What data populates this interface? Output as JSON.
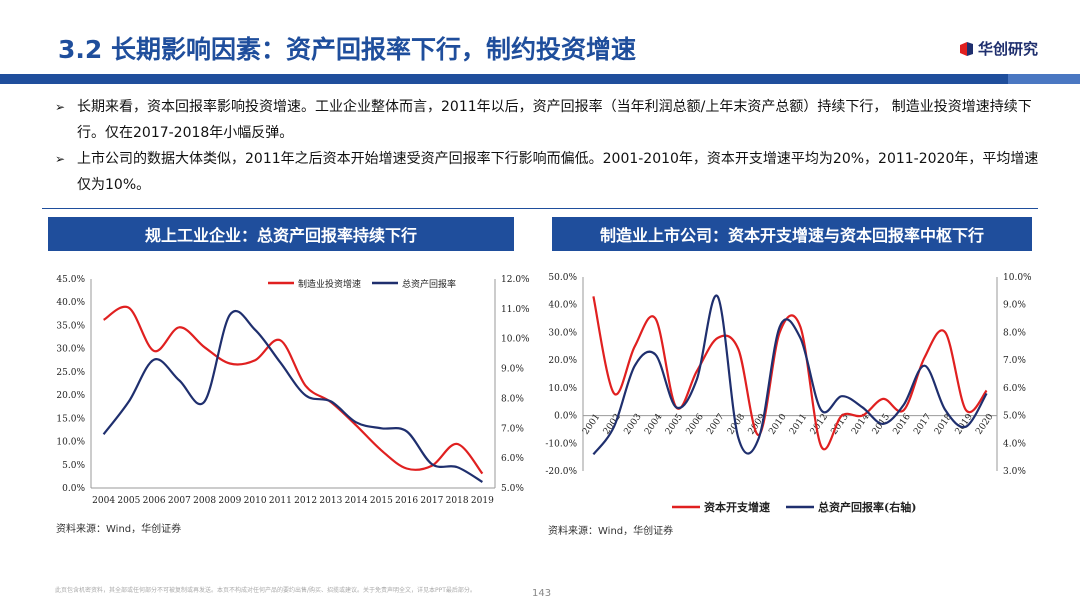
{
  "header": {
    "title": "3.2 长期影响因素：资产回报率下行，制约投资增速",
    "logo_text": "华创研究",
    "logo_colors": [
      "#e02020",
      "#1f2f6e"
    ]
  },
  "bullets": [
    "长期来看，资本回报率影响投资增速。工业企业整体而言，2011年以后，资产回报率（当年利润总额/上年末资产总额）持续下行， 制造业投资增速持续下行。仅在2017-2018年小幅反弹。",
    "上市公司的数据大体类似，2011年之后资本开始增速受资产回报率下行影响而偏低。2001-2010年，资本开支增速平均为20%，2011-2020年，平均增速仅为10%。"
  ],
  "bullet_marker": "➢",
  "panels": {
    "left_title": "规上工业企业：总资产回报率持续下行",
    "right_title": "制造业上市公司：资本开支增速与资本回报率中枢下行",
    "left_source": "资料来源：Wind，华创证券",
    "right_source": "资料来源：Wind，华创证券"
  },
  "footer": {
    "disclaimer": "此页包含机密资料，其全部或任何部分不可被复制或再发送。本页不构成对任何产品的要约出售/购买、招揽或建议。关于免责声明全文，详见本PPT最后部分。",
    "page_number": "143"
  },
  "chart_data": [
    {
      "type": "line",
      "x": [
        "2004",
        "2005",
        "2006",
        "2007",
        "2008",
        "2009",
        "2010",
        "2011",
        "2012",
        "2013",
        "2014",
        "2015",
        "2016",
        "2017",
        "2018",
        "2019"
      ],
      "series": [
        {
          "name": "制造业投资增速",
          "axis": "left",
          "color": "#e02020",
          "values": [
            36.2,
            38.8,
            29.5,
            34.6,
            30.3,
            26.8,
            27.5,
            31.8,
            22.0,
            18.5,
            13.5,
            8.1,
            4.2,
            4.8,
            9.5,
            3.1
          ]
        },
        {
          "name": "总资产回报率",
          "axis": "right",
          "color": "#1f2f6e",
          "values": [
            6.8,
            7.9,
            9.3,
            8.6,
            7.9,
            10.8,
            10.3,
            9.2,
            8.1,
            7.9,
            7.2,
            7.0,
            6.9,
            5.8,
            5.7,
            5.2
          ]
        }
      ],
      "y_left": {
        "min": 0,
        "max": 45,
        "step": 5,
        "format": "percent1"
      },
      "y_right": {
        "min": 5,
        "max": 12,
        "step": 1,
        "format": "percent1"
      },
      "legend_position": "top-right",
      "title": "",
      "xlabel": "",
      "ylabel": ""
    },
    {
      "type": "line",
      "x": [
        "2001",
        "2002",
        "2003",
        "2004",
        "2005",
        "2006",
        "2007",
        "2008",
        "2009",
        "2010",
        "2011",
        "2012",
        "2013",
        "2014",
        "2015",
        "2016",
        "2017",
        "2018",
        "2019",
        "2020"
      ],
      "series": [
        {
          "name": "资本开支增速",
          "axis": "left",
          "color": "#e02020",
          "values": [
            43,
            8,
            25,
            35,
            3,
            16,
            28,
            24,
            -7,
            30,
            32,
            -11,
            0,
            0,
            6,
            2,
            21,
            30,
            2,
            9
          ]
        },
        {
          "name": "总资产回报率(右轴)",
          "axis": "right",
          "color": "#1f2f6e",
          "values": [
            3.6,
            4.6,
            6.8,
            7.2,
            5.3,
            6.3,
            9.3,
            4.2,
            4.2,
            8.2,
            7.8,
            5.2,
            5.7,
            5.3,
            4.7,
            5.4,
            6.8,
            5.2,
            4.6,
            5.8
          ]
        }
      ],
      "y_left": {
        "min": -20,
        "max": 50,
        "step": 10,
        "format": "percent1"
      },
      "y_right": {
        "min": 3,
        "max": 10,
        "step": 1,
        "format": "percent1"
      },
      "legend_position": "bottom",
      "title": "",
      "xlabel": "",
      "ylabel": ""
    }
  ]
}
